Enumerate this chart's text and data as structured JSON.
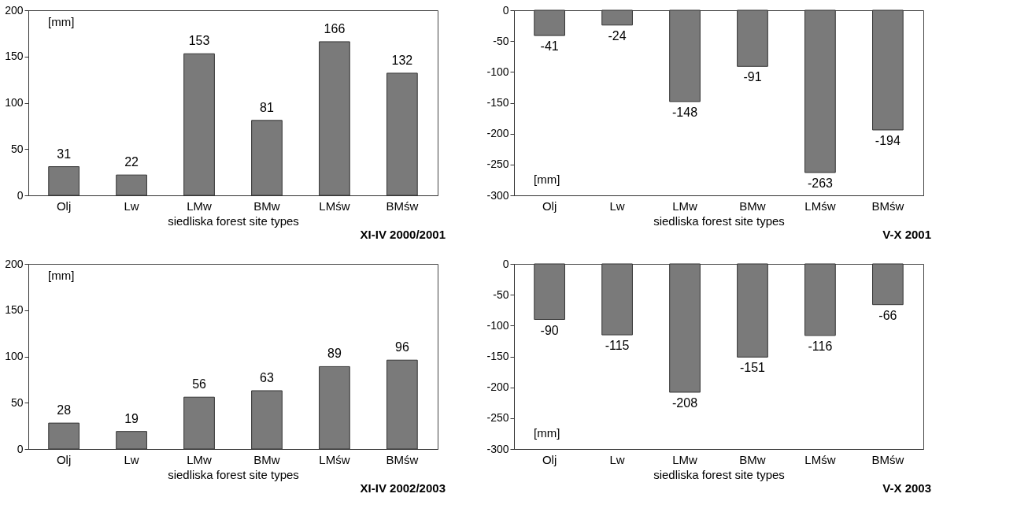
{
  "chart_data": [
    {
      "type": "bar",
      "categories": [
        "Olj",
        "Lw",
        "LMw",
        "BMw",
        "LMśw",
        "BMśw"
      ],
      "values": [
        31,
        22,
        153,
        81,
        166,
        132
      ],
      "color": "#7a7a7a",
      "ylim": [
        0,
        200
      ],
      "yticks": [
        0,
        50,
        100,
        150,
        200
      ],
      "xlabel": "siedliska   forest site types",
      "annotations": [
        "[mm]",
        "XI-IV 2000/2001"
      ],
      "data_labels": true
    },
    {
      "type": "bar",
      "categories": [
        "Olj",
        "Lw",
        "LMw",
        "BMw",
        "LMśw",
        "BMśw"
      ],
      "values": [
        -41,
        -24,
        -148,
        -91,
        -263,
        -194
      ],
      "color": "#7a7a7a",
      "ylim": [
        -300,
        0
      ],
      "yticks": [
        -300,
        -250,
        -200,
        -150,
        -100,
        -50,
        0
      ],
      "xlabel": "siedliska   forest site types",
      "annotations": [
        "[mm]",
        "V-X 2001"
      ],
      "data_labels": true
    },
    {
      "type": "bar",
      "categories": [
        "Olj",
        "Lw",
        "LMw",
        "BMw",
        "LMśw",
        "BMśw"
      ],
      "values": [
        28,
        19,
        56,
        63,
        89,
        96
      ],
      "color": "#7a7a7a",
      "ylim": [
        0,
        200
      ],
      "yticks": [
        0,
        50,
        100,
        150,
        200
      ],
      "xlabel": "siedliska   forest site types",
      "annotations": [
        "[mm]",
        "XI-IV 2002/2003"
      ],
      "data_labels": true
    },
    {
      "type": "bar",
      "categories": [
        "Olj",
        "Lw",
        "LMw",
        "BMw",
        "LMśw",
        "BMśw"
      ],
      "values": [
        -90,
        -115,
        -208,
        -151,
        -116,
        -66
      ],
      "color": "#7a7a7a",
      "ylim": [
        -300,
        0
      ],
      "yticks": [
        -300,
        -250,
        -200,
        -150,
        -100,
        -50,
        0
      ],
      "xlabel": "siedliska   forest site types",
      "annotations": [
        "[mm]",
        "V-X 2003"
      ],
      "data_labels": true
    }
  ]
}
